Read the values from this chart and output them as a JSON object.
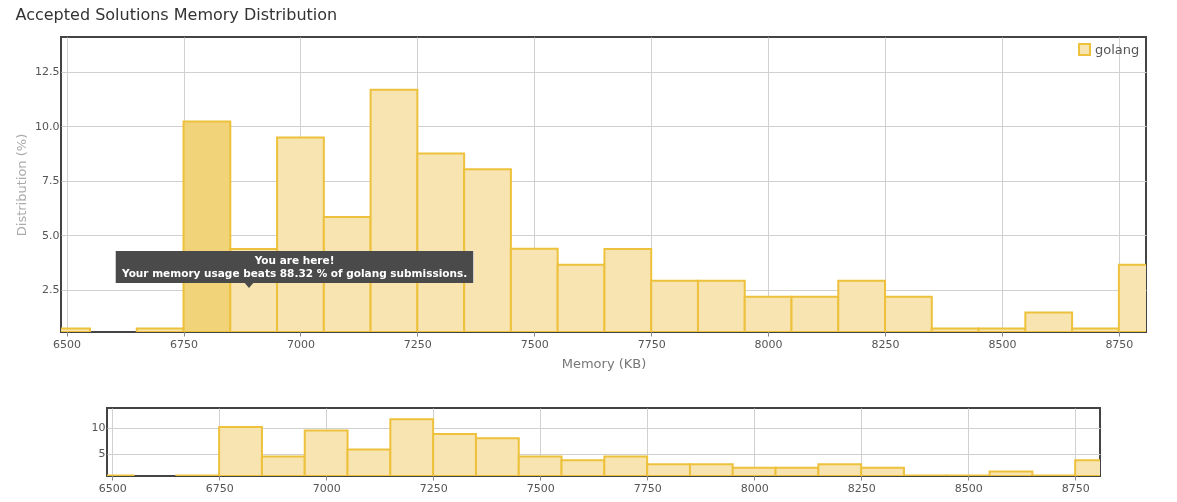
{
  "chart_data": [
    {
      "type": "histogram",
      "title": "Accepted Solutions Memory Distribution",
      "xlabel": "Memory (KB)",
      "ylabel": "Distribution (%)",
      "bins": [
        6450,
        6550,
        6650,
        6750,
        6850,
        6950,
        7050,
        7150,
        7250,
        7350,
        7450,
        7550,
        7650,
        7750,
        7850,
        7950,
        8050,
        8150,
        8250,
        8350,
        8450,
        8550,
        8650,
        8750,
        8850
      ],
      "series": [
        {
          "name": "golang",
          "color": "#f7e4b1",
          "values": [
            0.73,
            null,
            0.73,
            10.23,
            4.38,
            9.49,
            5.84,
            11.68,
            8.76,
            8.04,
            4.39,
            3.65,
            4.38,
            2.92,
            2.92,
            2.19,
            2.19,
            2.92,
            2.19,
            0.73,
            0.73,
            1.46,
            0.73,
            3.65
          ],
          "colors": [
            "#f7e4b1",
            "#f7e4b1",
            "#f7e4b1",
            "#f1d37a",
            "#f7e4b1",
            "#f7e4b1",
            "#f7e4b1",
            "#f7e4b1",
            "#f7e4b1",
            "#f7e4b1",
            "#f7e4b1",
            "#f7e4b1",
            "#f7e4b1",
            "#f7e4b1",
            "#f7e4b1",
            "#f7e4b1",
            "#f7e4b1",
            "#f7e4b1",
            "#f7e4b1",
            "#f7e4b1",
            "#f7e4b1",
            "#f7e4b1",
            "#f7e4b1",
            "#f7e4b1"
          ]
        }
      ],
      "xlim": [
        6488,
        8808
      ],
      "ylim": [
        0.57,
        14.1
      ],
      "xticks": [
        6500,
        6750,
        7000,
        7250,
        7500,
        7750,
        8000,
        8250,
        8500,
        8750
      ],
      "yticks": [
        2.5,
        {
          "value": 5,
          "label": "5.0"
        },
        7.5,
        {
          "value": 10,
          "label": "10.0"
        },
        12.5
      ],
      "grid": true,
      "legend": "top right",
      "annotations": [
        "You are here!\nYour memory usage beats 88.32 % of golang submissions."
      ]
    },
    {
      "type": "histogram",
      "bins": [
        6450,
        6550,
        6650,
        6750,
        6850,
        6950,
        7050,
        7150,
        7250,
        7350,
        7450,
        7550,
        7650,
        7750,
        7850,
        7950,
        8050,
        8150,
        8250,
        8350,
        8450,
        8550,
        8650,
        8750,
        8850
      ],
      "series": [
        {
          "color": "#f7e4b1",
          "values": [
            0.7,
            null,
            0.7,
            10.2,
            4.4,
            9.5,
            5.8,
            11.7,
            8.8,
            8.0,
            4.4,
            3.7,
            4.4,
            2.9,
            2.9,
            2.2,
            2.2,
            2.9,
            2.2,
            0.7,
            0.7,
            1.5,
            0.7,
            3.7
          ]
        }
      ],
      "xlim": [
        6488,
        8808
      ],
      "ylim": [
        0.6,
        13.9
      ],
      "xticks": [
        6500,
        6750,
        7000,
        7250,
        7500,
        7750,
        8000,
        8250,
        8500,
        8750
      ],
      "yticks": [
        5,
        10
      ],
      "grid": true
    }
  ]
}
